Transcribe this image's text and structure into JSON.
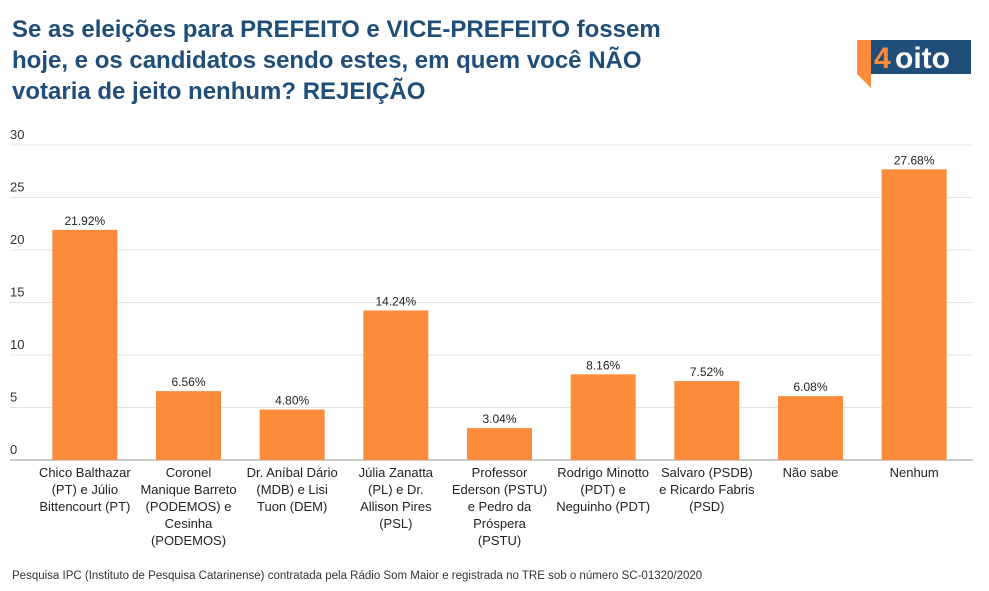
{
  "title": "Se as eleições para PREFEITO e VICE-PREFEITO fossem hoje, e os candidatos sendo estes, em quem você NÃO votaria de jeito nenhum? REJEIÇÃO",
  "logo": {
    "number": "4",
    "word": "oito"
  },
  "colors": {
    "bar": "#fc8c3c",
    "title": "#1f4e79",
    "logo_bg": "#1f4e79",
    "logo_accent": "#fc8c3c"
  },
  "footer": "Pesquisa IPC (Instituto de Pesquisa Catarinense) contratada pela Rádio Som Maior e registrada no TRE sob o número SC-01320/2020",
  "chart_data": {
    "type": "bar",
    "title": "Se as eleições para PREFEITO e VICE-PREFEITO fossem hoje, e os candidatos sendo estes, em quem você NÃO votaria de jeito nenhum? REJEIÇÃO",
    "xlabel": "",
    "ylabel": "",
    "ylim": [
      0,
      30
    ],
    "yticks": [
      "0",
      "5",
      "10",
      "15",
      "20",
      "25",
      "30"
    ],
    "grid": true,
    "legend": "none",
    "categories": [
      [
        "Chico Balthazar",
        "(PT) e Júlio",
        "Bittencourt (PT)"
      ],
      [
        "Coronel",
        "Manique Barreto",
        "(PODEMOS) e",
        "Cesinha",
        "(PODEMOS)"
      ],
      [
        "Dr. Aníbal Dário",
        "(MDB) e Lisi",
        "Tuon (DEM)"
      ],
      [
        "Júlia Zanatta",
        "(PL) e Dr.",
        "Allison Pires",
        "(PSL)"
      ],
      [
        "Professor",
        "Ederson (PSTU)",
        "e Pedro da",
        "Próspera",
        "(PSTU)"
      ],
      [
        "Rodrigo Minotto",
        "(PDT) e",
        "Neguinho (PDT)"
      ],
      [
        "Salvaro (PSDB)",
        "e Ricardo Fabris",
        "(PSD)"
      ],
      [
        "Não sabe"
      ],
      [
        "Nenhum"
      ]
    ],
    "values": [
      21.92,
      6.56,
      4.8,
      14.24,
      3.04,
      8.16,
      7.52,
      6.08,
      27.68
    ],
    "data_labels": [
      "21.92%",
      "6.56%",
      "4.80%",
      "14.24%",
      "3.04%",
      "8.16%",
      "7.52%",
      "6.08%",
      "27.68%"
    ]
  }
}
